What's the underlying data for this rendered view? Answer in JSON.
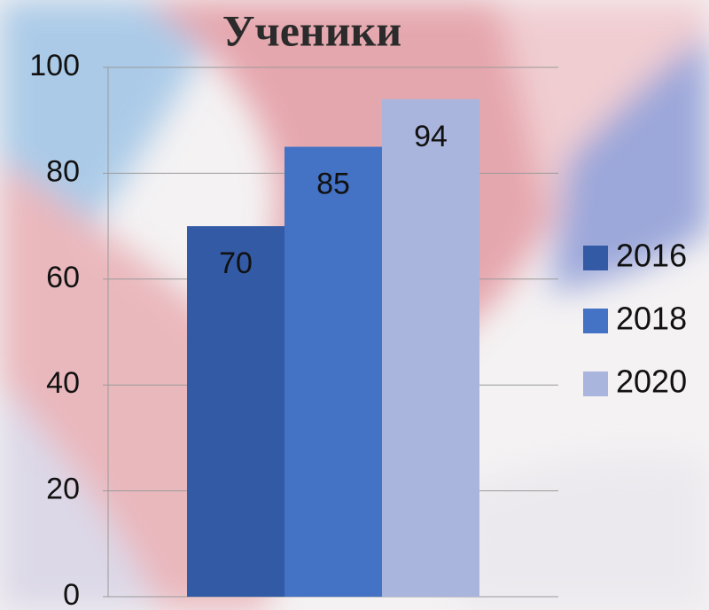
{
  "chart_data": {
    "type": "bar",
    "title": "Ученики",
    "categories": [
      null
    ],
    "series": [
      {
        "name": "2016",
        "color": "#335aa5",
        "values": [
          70
        ]
      },
      {
        "name": "2018",
        "color": "#4472c4",
        "values": [
          85
        ]
      },
      {
        "name": "2020",
        "color": "#a9b5dd",
        "values": [
          94
        ]
      }
    ],
    "ylim": [
      0,
      100
    ],
    "yticks": [
      0,
      20,
      40,
      60,
      80,
      100
    ],
    "grid": true,
    "legend": "right"
  }
}
